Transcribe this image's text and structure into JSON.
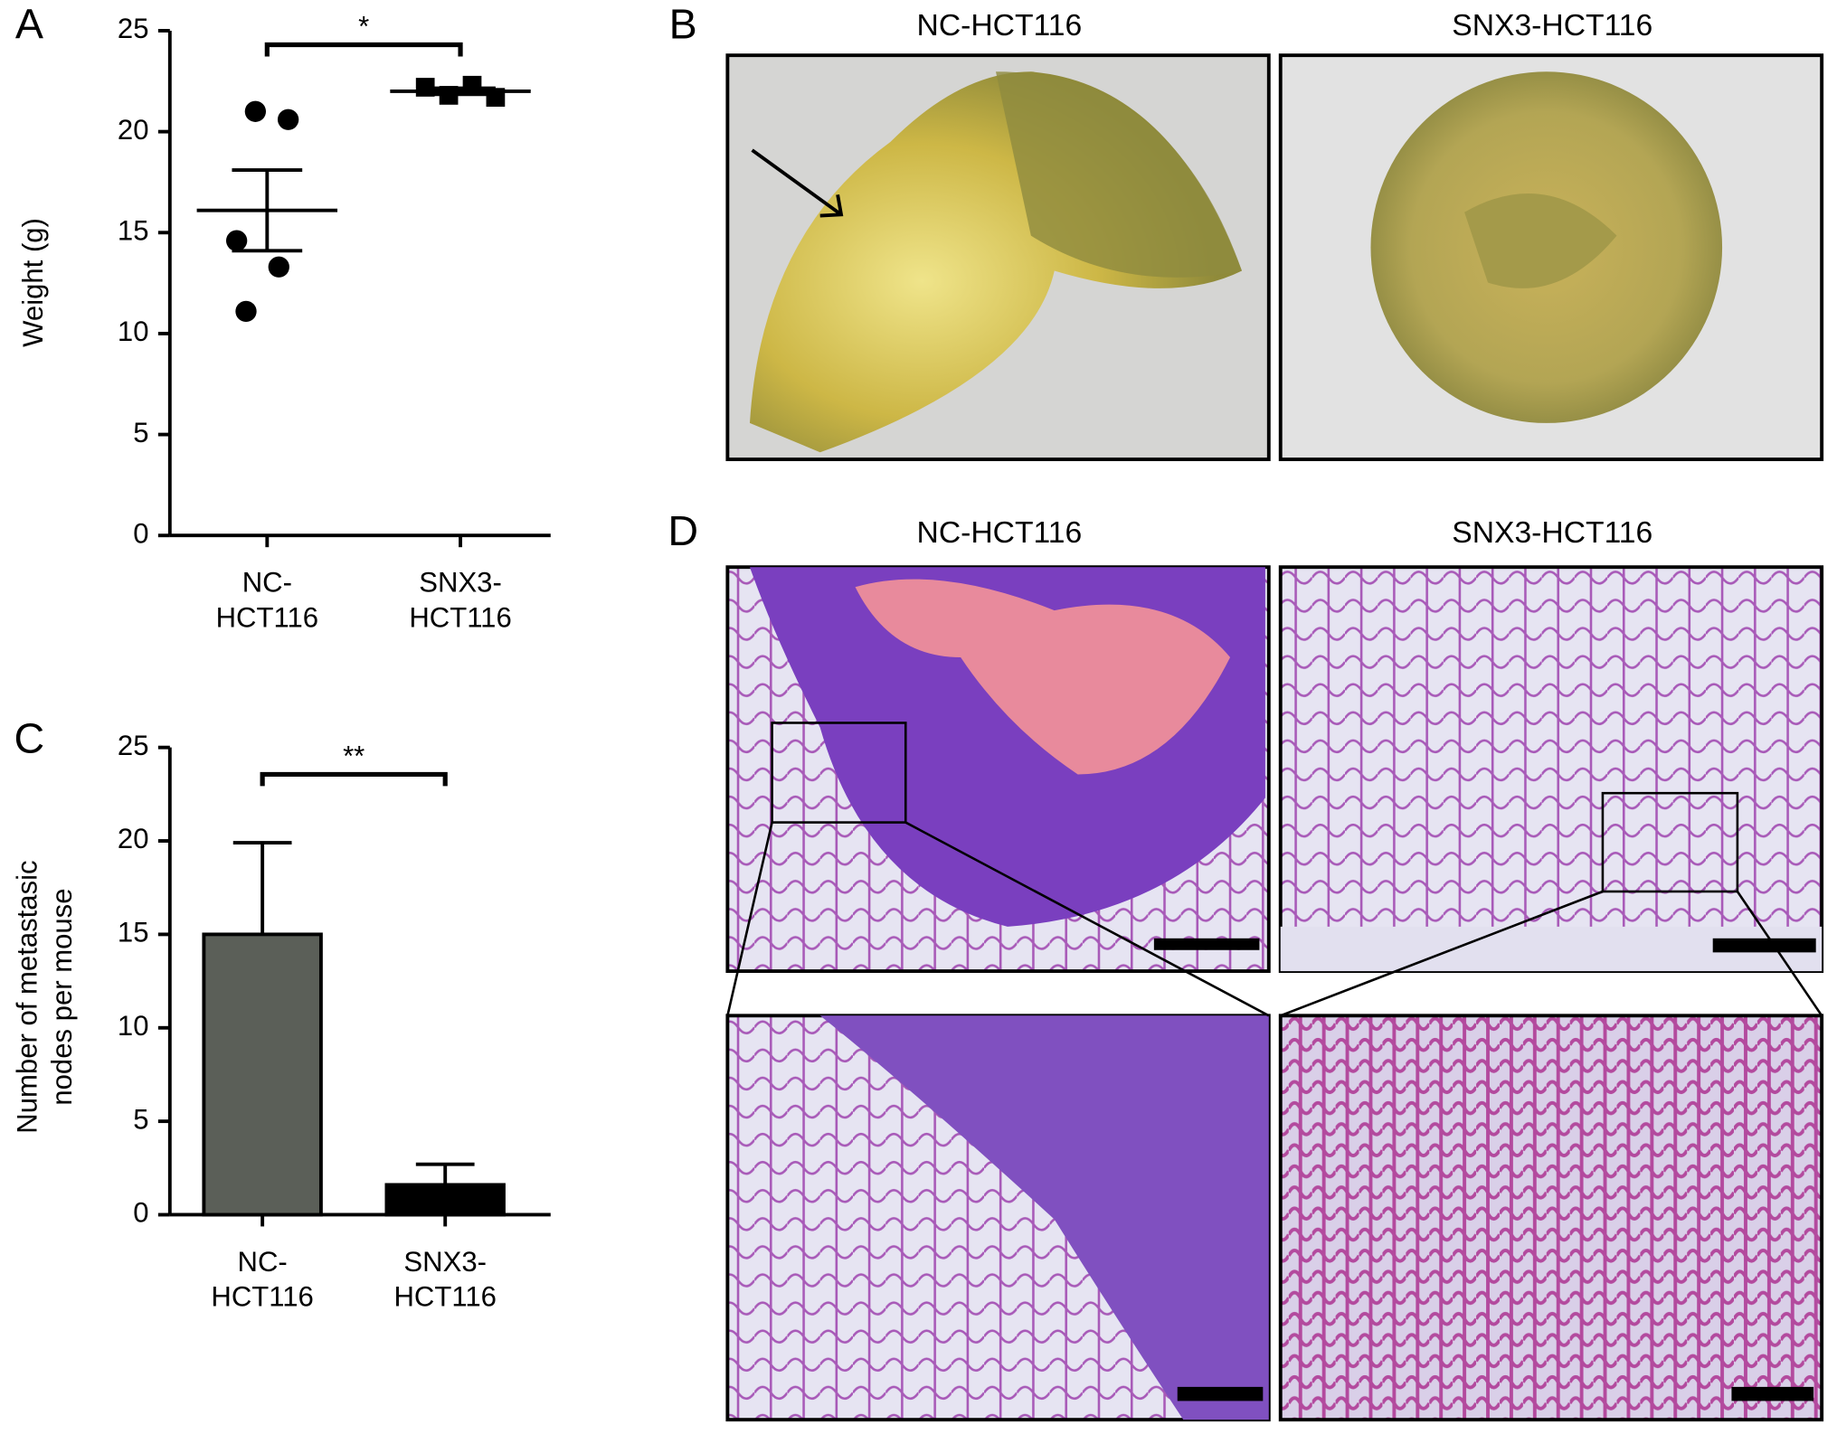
{
  "panel_labels": [
    "A",
    "B",
    "C",
    "D"
  ],
  "images": {
    "B": {
      "titles": [
        "NC-HCT116",
        "SNX3-HCT116"
      ]
    },
    "D": {
      "titles": [
        "NC-HCT116",
        "SNX3-HCT116"
      ]
    }
  },
  "chart_data": [
    {
      "type": "strip",
      "ylabel": "Weight (g)",
      "categories": [
        "NC-\nHCT116",
        "SNX3-\nHCT116"
      ],
      "values": [
        [
          21.0,
          20.6,
          14.6,
          13.3,
          11.1
        ],
        [
          22.2,
          21.8,
          22.3,
          21.7
        ]
      ],
      "markers": [
        "circle",
        "square"
      ],
      "color": "#000000",
      "means": [
        16.1,
        22.0
      ],
      "errors": [
        2.0,
        0.15
      ],
      "significance": "*",
      "ylim": [
        0,
        25
      ],
      "yticks": [
        0,
        5,
        10,
        15,
        20,
        25
      ]
    },
    {
      "type": "bar",
      "ylabel": "Number of metastasic\nnodes per mouse",
      "categories": [
        "NC-\nHCT116",
        "SNX3-\nHCT116"
      ],
      "values": [
        15.0,
        1.6
      ],
      "errors": [
        4.9,
        1.1
      ],
      "colors": [
        "#5b5f58",
        "#000000"
      ],
      "significance": "**",
      "ylim": [
        0,
        25
      ],
      "yticks": [
        0,
        5,
        10,
        15,
        20,
        25
      ]
    }
  ]
}
